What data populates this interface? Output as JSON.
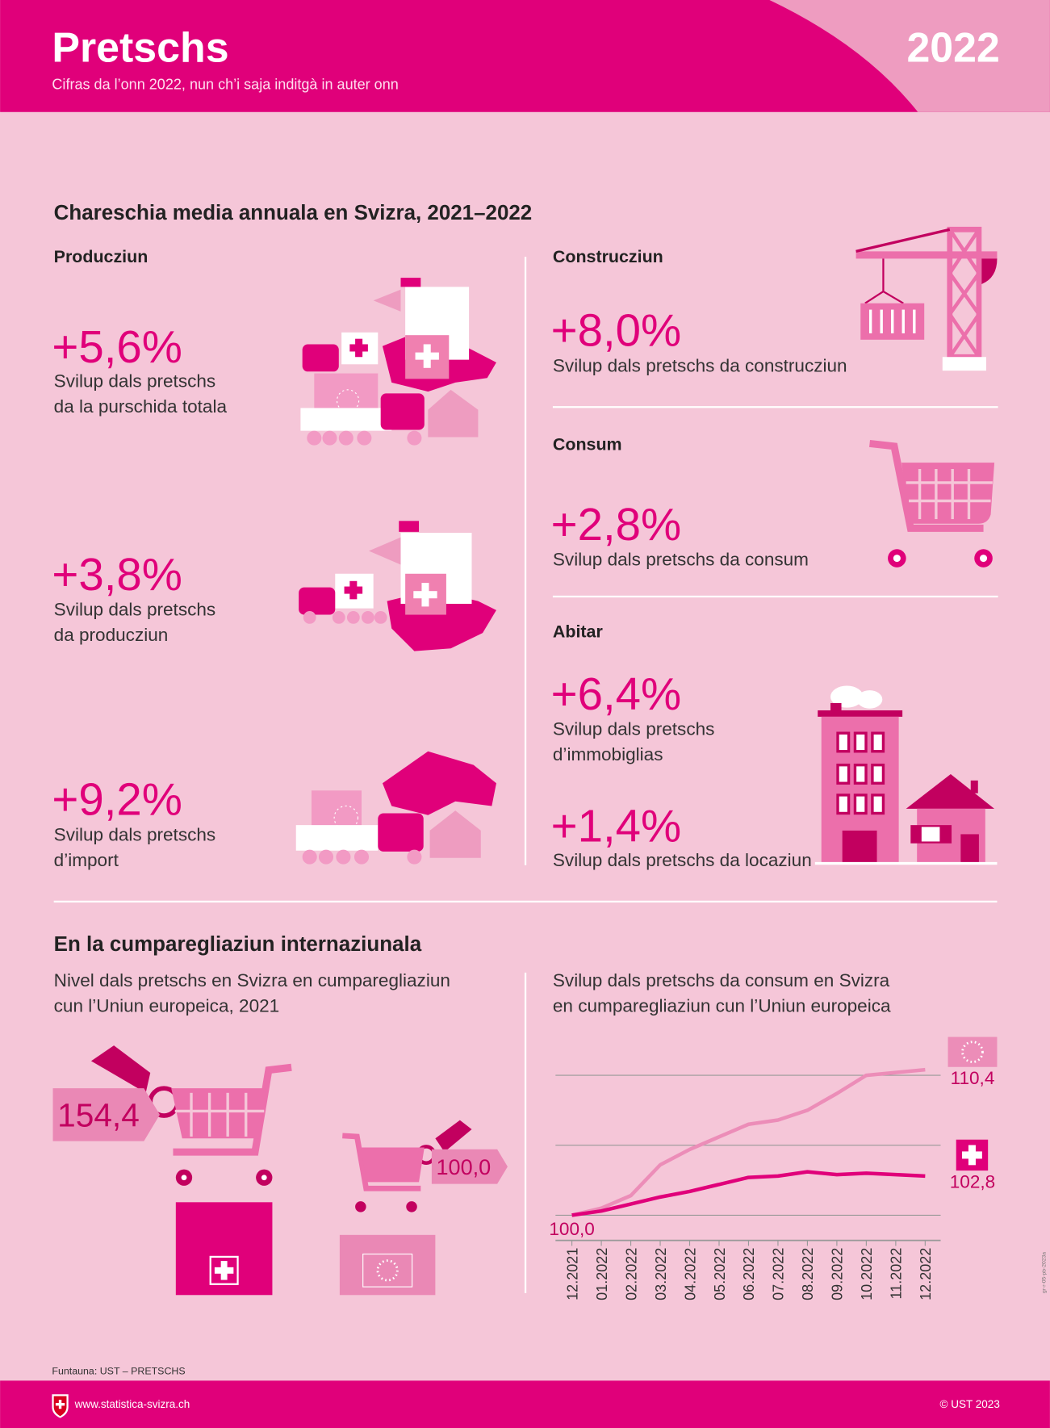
{
  "header": {
    "title": "Pretschs",
    "subtitle": "Cifras da l’onn 2022, nun ch’i saja inditgà in auter onn",
    "year": "2022"
  },
  "section1": {
    "title": "Chareschia media annuala en Svizra, 2021–2022",
    "items": [
      {
        "heading": "Producziun",
        "value": "+5,6%",
        "text": [
          "Svilup dals pretschs",
          "da la purschida totala"
        ]
      },
      {
        "value": "+3,8%",
        "text": [
          "Svilup dals pretschs",
          "da producziun"
        ]
      },
      {
        "value": "+9,2%",
        "text": [
          "Svilup dals pretschs",
          "d’import"
        ]
      },
      {
        "heading": "Construcziun",
        "value": "+8,0%",
        "text": [
          "Svilup dals pretschs da construcziun"
        ]
      },
      {
        "heading": "Consum",
        "value": "+2,8%",
        "text": [
          "Svilup dals pretschs da consum"
        ]
      },
      {
        "heading": "Abitar",
        "value": "+6,4%",
        "text": [
          "Svilup dals pretschs",
          "d’immobiglias"
        ]
      },
      {
        "value": "+1,4%",
        "text": [
          "Svilup dals pretschs da locaziun"
        ]
      }
    ]
  },
  "section2": {
    "title": "En la cumparegliaziun internaziunala",
    "subtitle": [
      "Nivel dals pretschs en Svizra en cumparegliaziun",
      "cun l’Uniun europeica, 2021"
    ],
    "price_levels": [
      {
        "value": 154.4,
        "label": "154,4",
        "flag": "ch"
      },
      {
        "value": 100,
        "label": "100,0",
        "flag": "eu"
      }
    ]
  },
  "chart_data": {
    "type": "line",
    "title": [
      "Svilup dals pretschs da consum en Svizra",
      "en cumparegliaziun cun l’Uniun europeica"
    ],
    "x": [
      "12.2021",
      "01.2022",
      "02.2022",
      "03.2022",
      "04.2022",
      "05.2022",
      "06.2022",
      "07.2022",
      "08.2022",
      "09.2022",
      "10.2022",
      "11.2022",
      "12.2022"
    ],
    "series": [
      {
        "flag": "eu",
        "color": "#ec8db8",
        "values": [
          100,
          100.5,
          101.4,
          103.6,
          104.7,
          105.6,
          106.5,
          106.8,
          107.5,
          108.7,
          110.0,
          110.2,
          110.4
        ],
        "end_label": {
          "value": 110.4,
          "label": "110,4"
        }
      },
      {
        "flag": "ch",
        "color": "#e0007a",
        "values": [
          100,
          100.3,
          100.8,
          101.3,
          101.7,
          102.2,
          102.7,
          102.8,
          103.1,
          102.9,
          103.0,
          102.9,
          102.8
        ],
        "end_label": {
          "value": 102.8,
          "label": "102,8"
        }
      }
    ],
    "start_label": {
      "value": 100,
      "label": "100,0"
    },
    "ylim": [
      98.2,
      112
    ],
    "yticks": [
      100,
      105,
      110
    ],
    "grid": true
  },
  "footer": {
    "source": "Funtauna: UST – PRETSCHS",
    "url": "www.statistica-svizra.ch",
    "copyright": "© UST 2023",
    "code": "gr-r-05-pb-2023a"
  }
}
